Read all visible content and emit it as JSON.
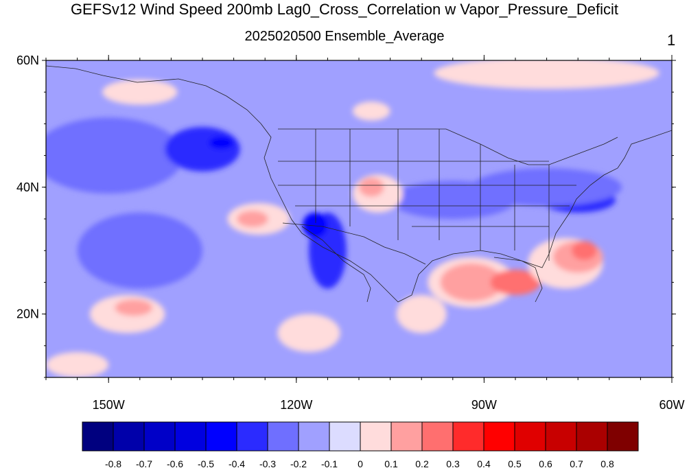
{
  "title": "GEFSv12 Wind Speed 200mb Lag0_Cross_Correlation w Vapor_Pressure_Deficit",
  "subtitle": "2025020500 Ensemble_Average",
  "panel_number": "1",
  "map": {
    "lon_range": [
      -160,
      -60
    ],
    "lat_range": [
      10,
      60
    ],
    "lat_ticks": [
      {
        "value": 60,
        "label": "60N"
      },
      {
        "value": 40,
        "label": "40N"
      },
      {
        "value": 20,
        "label": "20N"
      }
    ],
    "lon_ticks": [
      {
        "value": -150,
        "label": "150W"
      },
      {
        "value": -120,
        "label": "120W"
      },
      {
        "value": -90,
        "label": "90W"
      },
      {
        "value": -60,
        "label": "60W"
      }
    ],
    "background_level": -0.1
  },
  "colorbar": {
    "labels": [
      "-0.8",
      "-0.7",
      "-0.6",
      "-0.5",
      "-0.4",
      "-0.3",
      "-0.2",
      "-0.1",
      "0",
      "0.1",
      "0.2",
      "0.3",
      "0.4",
      "0.5",
      "0.6",
      "0.7",
      "0.8"
    ],
    "colors": [
      "#00007f",
      "#0000aa",
      "#0000c8",
      "#0000e0",
      "#0000ff",
      "#2b2bff",
      "#6f6fff",
      "#a0a0ff",
      "#dcdcff",
      "#ffdcdc",
      "#ffa0a0",
      "#ff6f6f",
      "#ff2b2b",
      "#ff0000",
      "#e00000",
      "#c80000",
      "#aa0000",
      "#7f0000"
    ]
  }
}
